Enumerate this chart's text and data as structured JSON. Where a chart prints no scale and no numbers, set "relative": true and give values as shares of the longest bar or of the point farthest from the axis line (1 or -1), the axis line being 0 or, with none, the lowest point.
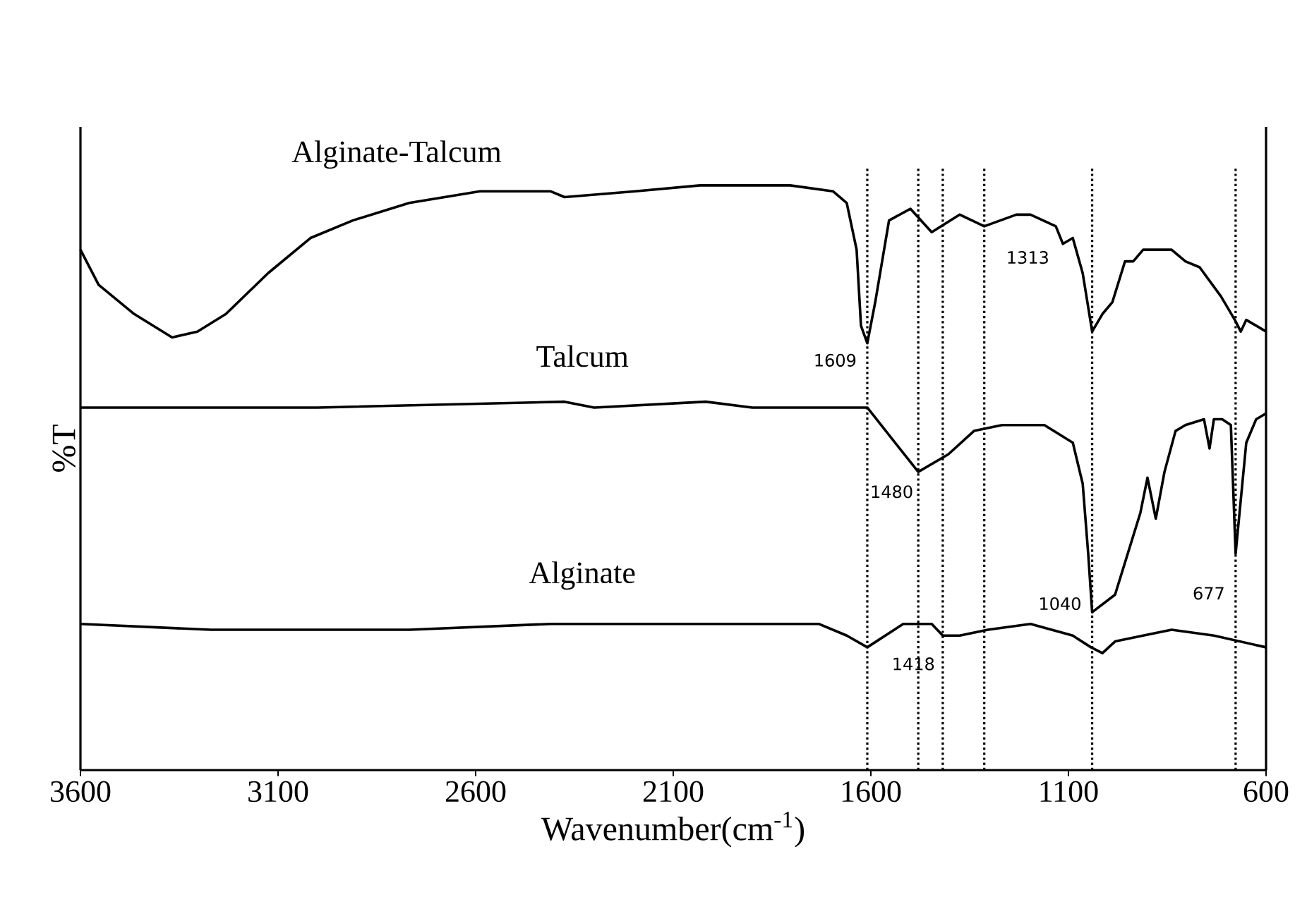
{
  "chart_data": {
    "type": "line",
    "relative": true,
    "xlabel": "Wavenumber(cm$^{-1}$)",
    "ylabel": "%T",
    "xlim": [
      3600,
      600
    ],
    "xticks": [
      3600,
      3100,
      2600,
      2100,
      1600,
      1100,
      600
    ],
    "series": [
      {
        "name": "Alginate-Talcum",
        "color": "#000000",
        "x": [
          3600,
          3554,
          3464,
          3368,
          3304,
          3232,
          3125,
          3018,
          2911,
          2768,
          2589,
          2411,
          2375,
          2196,
          2032,
          1804,
          1696,
          1661,
          1636,
          1625,
          1609,
          1589,
          1554,
          1500,
          1446,
          1375,
          1313,
          1232,
          1196,
          1132,
          1114,
          1089,
          1064,
          1040,
          1014,
          989,
          957,
          936,
          911,
          839,
          804,
          768,
          714,
          679,
          664,
          650,
          600
        ],
        "values": [
          0.89,
          0.83,
          0.78,
          0.74,
          0.75,
          0.78,
          0.85,
          0.91,
          0.94,
          0.97,
          0.99,
          0.99,
          0.98,
          0.99,
          1.0,
          1.0,
          0.99,
          0.97,
          0.89,
          0.76,
          0.73,
          0.8,
          0.94,
          0.96,
          0.92,
          0.95,
          0.93,
          0.95,
          0.95,
          0.93,
          0.9,
          0.91,
          0.85,
          0.75,
          0.78,
          0.8,
          0.87,
          0.87,
          0.89,
          0.89,
          0.87,
          0.86,
          0.81,
          0.77,
          0.75,
          0.77,
          0.75
        ]
      },
      {
        "name": "Talcum",
        "color": "#000000",
        "x": [
          3600,
          3000,
          2375,
          2300,
          2018,
          1900,
          1609,
          1480,
          1404,
          1339,
          1268,
          1161,
          1089,
          1064,
          1050,
          1040,
          982,
          918,
          900,
          879,
          857,
          829,
          804,
          757,
          743,
          732,
          711,
          689,
          677,
          650,
          625,
          600
        ],
        "values": [
          0.62,
          0.62,
          0.63,
          0.62,
          0.63,
          0.62,
          0.62,
          0.51,
          0.54,
          0.58,
          0.59,
          0.59,
          0.56,
          0.49,
          0.37,
          0.27,
          0.3,
          0.44,
          0.5,
          0.43,
          0.51,
          0.58,
          0.59,
          0.6,
          0.55,
          0.6,
          0.6,
          0.59,
          0.37,
          0.56,
          0.6,
          0.61
        ]
      },
      {
        "name": "Alginate",
        "color": "#000000",
        "x": [
          3600,
          3270,
          2768,
          2411,
          2054,
          1732,
          1661,
          1609,
          1518,
          1446,
          1418,
          1375,
          1304,
          1196,
          1089,
          1043,
          1014,
          982,
          911,
          839,
          732,
          600
        ],
        "values": [
          0.25,
          0.24,
          0.24,
          0.25,
          0.25,
          0.25,
          0.23,
          0.21,
          0.25,
          0.25,
          0.23,
          0.23,
          0.24,
          0.25,
          0.23,
          0.21,
          0.2,
          0.22,
          0.23,
          0.24,
          0.23,
          0.21
        ]
      }
    ],
    "ref_lines": [
      {
        "axis": "x",
        "value": 1609,
        "line_style": "dotted",
        "color": "#000000"
      },
      {
        "axis": "x",
        "value": 1480,
        "line_style": "dotted",
        "color": "#000000"
      },
      {
        "axis": "x",
        "value": 1418,
        "line_style": "dotted",
        "color": "#000000"
      },
      {
        "axis": "x",
        "value": 1313,
        "line_style": "dotted",
        "color": "#000000"
      },
      {
        "axis": "x",
        "value": 1040,
        "line_style": "dotted",
        "color": "#000000"
      },
      {
        "axis": "x",
        "value": 677,
        "line_style": "dotted",
        "color": "#000000"
      }
    ],
    "annotations": [
      {
        "text": "1609",
        "x": 1609,
        "y": 0.73
      },
      {
        "text": "1313",
        "x": 1313,
        "y": 0.93
      },
      {
        "text": "1480",
        "x": 1480,
        "y": 0.51
      },
      {
        "text": "1418",
        "x": 1418,
        "y": 0.23
      },
      {
        "text": "1040",
        "x": 1040,
        "y": 0.27
      },
      {
        "text": "677",
        "x": 677,
        "y": 0.37
      }
    ],
    "line_style": "solid"
  }
}
